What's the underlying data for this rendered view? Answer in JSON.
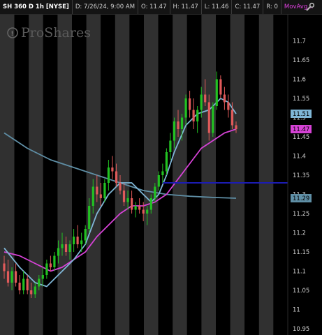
{
  "header": {
    "symbol": "SH 360 D 1h [NYSE]",
    "date": "D: 7/26/24, 9:00 AM",
    "open": "O: 11.47",
    "high": "H: 11.47",
    "low": "L: 11.46",
    "close": "C: 11.47",
    "range": "R: 0",
    "study": "MovAvg..."
  },
  "icons": {
    "header_icon": "wrench-icon",
    "watermark_icon": "info-icon"
  },
  "watermark": "ProShares",
  "colors": {
    "background": "#000000",
    "band_dark": "#303030",
    "up": "#22c222",
    "down": "#e05a5a",
    "ma_fast": "#7fb6d6",
    "ma_mid": "#d642d6",
    "ma_slow": "#5f8fa6",
    "hline": "#1c1cb4"
  },
  "chart_data": {
    "type": "candlestick",
    "ylim": [
      10.95,
      11.75
    ],
    "yticks": [
      "11.7",
      "11.65",
      "11.6",
      "11.55",
      "11.5",
      "11.45",
      "11.4",
      "11.35",
      "11.3",
      "11.25",
      "11.2",
      "11.15",
      "11.1",
      "11.05",
      "11",
      "10.95"
    ],
    "grid": "alternating vertical session bands",
    "last_price": 11.47,
    "price_labels": [
      {
        "label": "11.51",
        "value": 11.51,
        "color": "#7fb6d6"
      },
      {
        "label": "11.47",
        "value": 11.47,
        "color": "#d642d6"
      },
      {
        "label": "11.29",
        "value": 11.29,
        "color": "#5f8fa6"
      }
    ],
    "horizontal_line": {
      "value": 11.33,
      "start_bar": 41,
      "end_bar": 60
    },
    "candles": [
      [
        11.12,
        11.14,
        11.08,
        11.1
      ],
      [
        11.1,
        11.13,
        11.06,
        11.07
      ],
      [
        11.07,
        11.11,
        11.05,
        11.1
      ],
      [
        11.1,
        11.12,
        11.06,
        11.07
      ],
      [
        11.07,
        11.09,
        11.04,
        11.05
      ],
      [
        11.05,
        11.1,
        11.04,
        11.08
      ],
      [
        11.08,
        11.09,
        11.04,
        11.05
      ],
      [
        11.05,
        11.07,
        11.03,
        11.04
      ],
      [
        11.04,
        11.07,
        11.03,
        11.06
      ],
      [
        11.06,
        11.09,
        11.05,
        11.08
      ],
      [
        11.08,
        11.11,
        11.06,
        11.09
      ],
      [
        11.09,
        11.13,
        11.08,
        11.12
      ],
      [
        11.12,
        11.14,
        11.1,
        11.11
      ],
      [
        11.11,
        11.15,
        11.1,
        11.14
      ],
      [
        11.14,
        11.18,
        11.12,
        11.16
      ],
      [
        11.16,
        11.2,
        11.14,
        11.17
      ],
      [
        11.17,
        11.19,
        11.14,
        11.15
      ],
      [
        11.15,
        11.18,
        11.13,
        11.17
      ],
      [
        11.17,
        11.21,
        11.15,
        11.19
      ],
      [
        11.19,
        11.22,
        11.16,
        11.17
      ],
      [
        11.17,
        11.2,
        11.15,
        11.18
      ],
      [
        11.18,
        11.22,
        11.17,
        11.21
      ],
      [
        11.21,
        11.29,
        11.2,
        11.27
      ],
      [
        11.27,
        11.34,
        11.25,
        11.32
      ],
      [
        11.32,
        11.35,
        11.28,
        11.3
      ],
      [
        11.3,
        11.33,
        11.27,
        11.29
      ],
      [
        11.29,
        11.34,
        11.28,
        11.33
      ],
      [
        11.33,
        11.39,
        11.31,
        11.37
      ],
      [
        11.37,
        11.4,
        11.34,
        11.36
      ],
      [
        11.36,
        11.38,
        11.32,
        11.33
      ],
      [
        11.33,
        11.35,
        11.3,
        11.31
      ],
      [
        11.31,
        11.33,
        11.27,
        11.28
      ],
      [
        11.28,
        11.31,
        11.26,
        11.29
      ],
      [
        11.29,
        11.31,
        11.25,
        11.26
      ],
      [
        11.26,
        11.28,
        11.24,
        11.27
      ],
      [
        11.27,
        11.29,
        11.25,
        11.26
      ],
      [
        11.26,
        11.28,
        11.23,
        11.25
      ],
      [
        11.25,
        11.27,
        11.22,
        11.26
      ],
      [
        11.26,
        11.3,
        11.25,
        11.29
      ],
      [
        11.29,
        11.33,
        11.28,
        11.32
      ],
      [
        11.32,
        11.36,
        11.31,
        11.35
      ],
      [
        11.35,
        11.38,
        11.33,
        11.36
      ],
      [
        11.36,
        11.42,
        11.35,
        11.41
      ],
      [
        11.41,
        11.46,
        11.39,
        11.44
      ],
      [
        11.44,
        11.5,
        11.42,
        11.49
      ],
      [
        11.49,
        11.52,
        11.45,
        11.47
      ],
      [
        11.47,
        11.51,
        11.44,
        11.5
      ],
      [
        11.5,
        11.56,
        11.48,
        11.55
      ],
      [
        11.55,
        11.57,
        11.5,
        11.52
      ],
      [
        11.52,
        11.55,
        11.47,
        11.49
      ],
      [
        11.49,
        11.53,
        11.46,
        11.52
      ],
      [
        11.52,
        11.58,
        11.5,
        11.56
      ],
      [
        11.56,
        11.6,
        11.53,
        11.54
      ],
      [
        11.54,
        11.56,
        11.44,
        11.46
      ],
      [
        11.46,
        11.54,
        11.45,
        11.53
      ],
      [
        11.53,
        11.62,
        11.52,
        11.6
      ],
      [
        11.6,
        11.61,
        11.55,
        11.56
      ],
      [
        11.56,
        11.58,
        11.52,
        11.54
      ],
      [
        11.54,
        11.56,
        11.5,
        11.52
      ],
      [
        11.52,
        11.54,
        11.47,
        11.48
      ],
      [
        11.48,
        11.49,
        11.46,
        11.47
      ]
    ],
    "ma_fast": [
      [
        0,
        11.16
      ],
      [
        4,
        11.11
      ],
      [
        8,
        11.07
      ],
      [
        11,
        11.06
      ],
      [
        14,
        11.09
      ],
      [
        18,
        11.13
      ],
      [
        21,
        11.17
      ],
      [
        24,
        11.25
      ],
      [
        27,
        11.3
      ],
      [
        30,
        11.33
      ],
      [
        33,
        11.33
      ],
      [
        36,
        11.3
      ],
      [
        38,
        11.28
      ],
      [
        40,
        11.3
      ],
      [
        42,
        11.35
      ],
      [
        44,
        11.41
      ],
      [
        47,
        11.48
      ],
      [
        50,
        11.51
      ],
      [
        53,
        11.52
      ],
      [
        56,
        11.55
      ],
      [
        58,
        11.54
      ],
      [
        60,
        11.51
      ]
    ],
    "ma_mid": [
      [
        0,
        11.15
      ],
      [
        4,
        11.14
      ],
      [
        8,
        11.12
      ],
      [
        12,
        11.1
      ],
      [
        15,
        11.11
      ],
      [
        18,
        11.13
      ],
      [
        21,
        11.15
      ],
      [
        24,
        11.19
      ],
      [
        27,
        11.22
      ],
      [
        30,
        11.25
      ],
      [
        33,
        11.27
      ],
      [
        36,
        11.27
      ],
      [
        39,
        11.28
      ],
      [
        42,
        11.3
      ],
      [
        45,
        11.34
      ],
      [
        48,
        11.38
      ],
      [
        51,
        11.42
      ],
      [
        54,
        11.44
      ],
      [
        57,
        11.46
      ],
      [
        60,
        11.47
      ]
    ],
    "ma_slow": [
      [
        0,
        11.46
      ],
      [
        6,
        11.42
      ],
      [
        12,
        11.39
      ],
      [
        18,
        11.37
      ],
      [
        24,
        11.35
      ],
      [
        30,
        11.33
      ],
      [
        36,
        11.31
      ],
      [
        42,
        11.3
      ],
      [
        48,
        11.295
      ],
      [
        54,
        11.292
      ],
      [
        60,
        11.29
      ]
    ]
  }
}
